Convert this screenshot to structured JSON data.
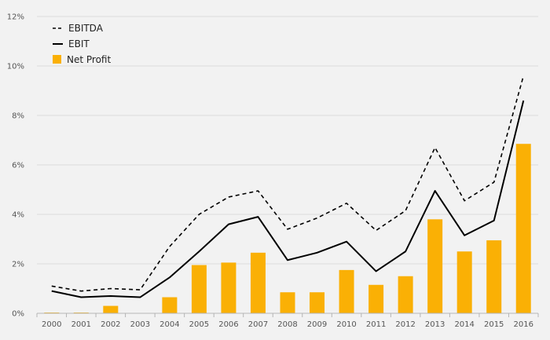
{
  "chart_data": {
    "type": "bar",
    "categories": [
      "2000",
      "2001",
      "2002",
      "2003",
      "2004",
      "2005",
      "2006",
      "2007",
      "2008",
      "2009",
      "2010",
      "2011",
      "2012",
      "2013",
      "2014",
      "2015",
      "2016"
    ],
    "ylim": [
      0,
      12
    ],
    "y_ticks": [
      0,
      2,
      4,
      6,
      8,
      10,
      12
    ],
    "y_tick_labels": [
      "0%",
      "2%",
      "4%",
      "6%",
      "8%",
      "10%",
      "12%"
    ],
    "grid": "horizontal",
    "legend_position": "top-left",
    "series": [
      {
        "name": "EBITDA",
        "type": "line",
        "style": "dashed",
        "color": "#000000",
        "values": [
          1.1,
          0.9,
          1.0,
          0.95,
          2.7,
          4.0,
          4.7,
          4.95,
          3.4,
          3.85,
          4.45,
          3.35,
          4.15,
          6.7,
          4.55,
          5.3,
          9.6
        ]
      },
      {
        "name": "EBIT",
        "type": "line",
        "style": "solid",
        "color": "#000000",
        "values": [
          0.9,
          0.65,
          0.7,
          0.65,
          1.45,
          2.5,
          3.6,
          3.9,
          2.15,
          2.45,
          2.9,
          1.7,
          2.5,
          4.95,
          3.15,
          3.75,
          8.6
        ]
      },
      {
        "name": "Net Profit",
        "type": "bar",
        "color": "#fab005",
        "values": [
          0.03,
          0.03,
          0.3,
          0.0,
          0.65,
          1.95,
          2.05,
          2.45,
          0.85,
          0.85,
          1.75,
          1.15,
          1.5,
          3.8,
          2.5,
          2.95,
          6.85
        ]
      }
    ]
  }
}
